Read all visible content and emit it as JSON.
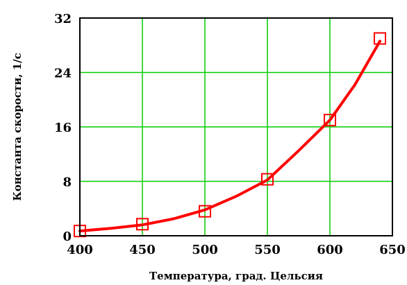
{
  "chart_data": {
    "type": "line",
    "title": "",
    "xlabel": "Температура, град. Цельсия",
    "ylabel": "Константа скорости, 1/c",
    "xlim": [
      400,
      650
    ],
    "ylim": [
      0,
      32
    ],
    "xticks": [
      400,
      450,
      500,
      550,
      600,
      650
    ],
    "yticks": [
      0,
      8,
      16,
      24,
      32
    ],
    "grid": true,
    "colors": {
      "line": "#ff0000",
      "marker": "#ff0000",
      "grid": "#00cc00",
      "frame": "#000000"
    },
    "series": [
      {
        "name": "",
        "style": "line",
        "x": [
          400,
          425,
          450,
          475,
          500,
          525,
          550,
          575,
          600,
          620,
          640
        ],
        "y": [
          0.7,
          1.1,
          1.6,
          2.5,
          3.8,
          5.8,
          8.2,
          12.5,
          17.0,
          22.2,
          28.6
        ]
      },
      {
        "name": "",
        "style": "markers",
        "marker": "square",
        "x": [
          400,
          450,
          500,
          550,
          600,
          640
        ],
        "y": [
          0.7,
          1.7,
          3.6,
          8.3,
          17.0,
          29.0
        ]
      }
    ]
  }
}
